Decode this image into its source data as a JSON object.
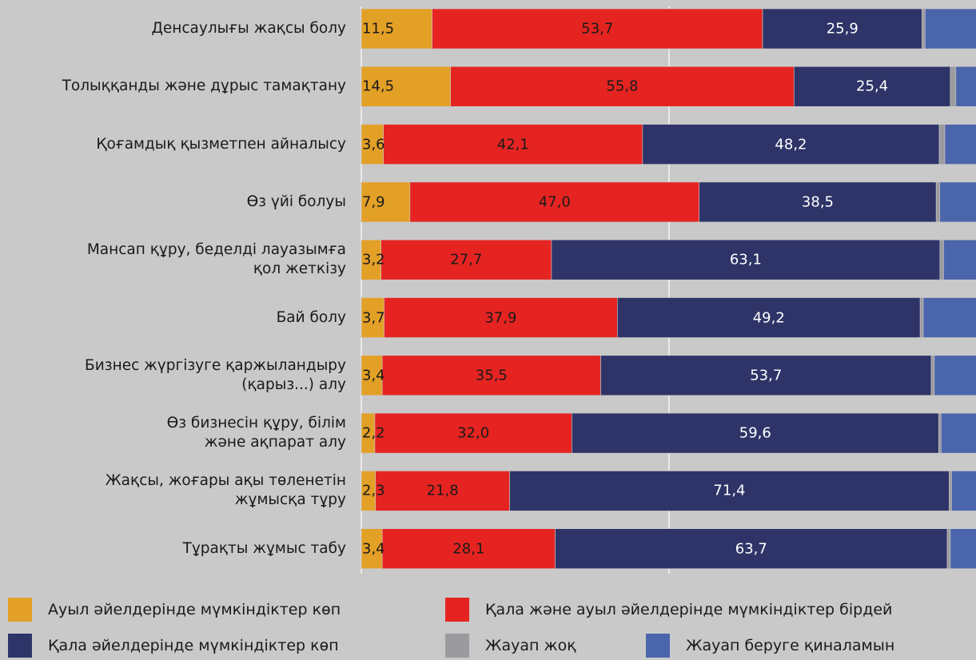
{
  "chart_data": {
    "type": "bar",
    "orientation": "horizontal",
    "stacked": true,
    "categories": [
      "Денсаулығы жақсы болу",
      "Толыққанды және дұрыс тамақтану",
      "Қоғамдық қызметпен айналысу",
      "Өз үйі болуы",
      "Мансап құру, беделді лауазымға\nқол жеткізу",
      "Бай болу",
      "Бизнес жүргізуге қаржыландыру\n(қарыз...) алу",
      "Өз бизнесін құру, білім\nжәне ақпарат алу",
      "Жақсы, жоғары ақы төленетін\nжұмысқа тұру",
      "Тұрақты жұмыс табу"
    ],
    "series": [
      {
        "name": "Ауыл әйелдерінде мүмкіндіктер көп",
        "color": "#e3a026",
        "values": [
          11.5,
          14.5,
          3.6,
          7.9,
          3.2,
          3.7,
          3.4,
          2.2,
          2.3,
          3.4
        ],
        "value_labels": [
          "11,5",
          "14,5",
          "3,6",
          "7,9",
          "3,2",
          "3,7",
          "3,4",
          "2,2",
          "2,3",
          "3,4"
        ]
      },
      {
        "name": "Қала және ауыл әйелдерінде мүмкіндіктер бірдей",
        "color": "#e52421",
        "values": [
          53.7,
          55.8,
          42.1,
          47.0,
          27.7,
          37.9,
          35.5,
          32.0,
          21.8,
          28.1
        ],
        "value_labels": [
          "53,7",
          "55,8",
          "42,1",
          "47,0",
          "27,7",
          "37,9",
          "35,5",
          "32,0",
          "21,8",
          "28,1"
        ]
      },
      {
        "name": "Қала әйелдерінде мүмкіндіктер көп",
        "color": "#2e3468",
        "values": [
          25.9,
          25.4,
          48.2,
          38.5,
          63.1,
          49.2,
          53.7,
          59.6,
          71.4,
          63.7
        ],
        "value_labels": [
          "25,9",
          "25,4",
          "48,2",
          "38,5",
          "63,1",
          "49,2",
          "53,7",
          "59,6",
          "71,4",
          "63,7"
        ]
      },
      {
        "name": "Жауап жоқ",
        "color": "#9b9b9f",
        "values": [
          0.5,
          0.9,
          0.9,
          0.6,
          0.6,
          0.5,
          0.5,
          0.4,
          0.4,
          0.5
        ]
      },
      {
        "name": "Жауап беруге қиналамын",
        "color": "#4a65ab",
        "values": [
          8.4,
          3.4,
          5.2,
          6.0,
          5.4,
          8.7,
          6.9,
          5.8,
          4.1,
          4.3
        ]
      }
    ],
    "xlim": [
      0,
      100
    ],
    "xticks": [
      0,
      50
    ],
    "grid": true
  }
}
